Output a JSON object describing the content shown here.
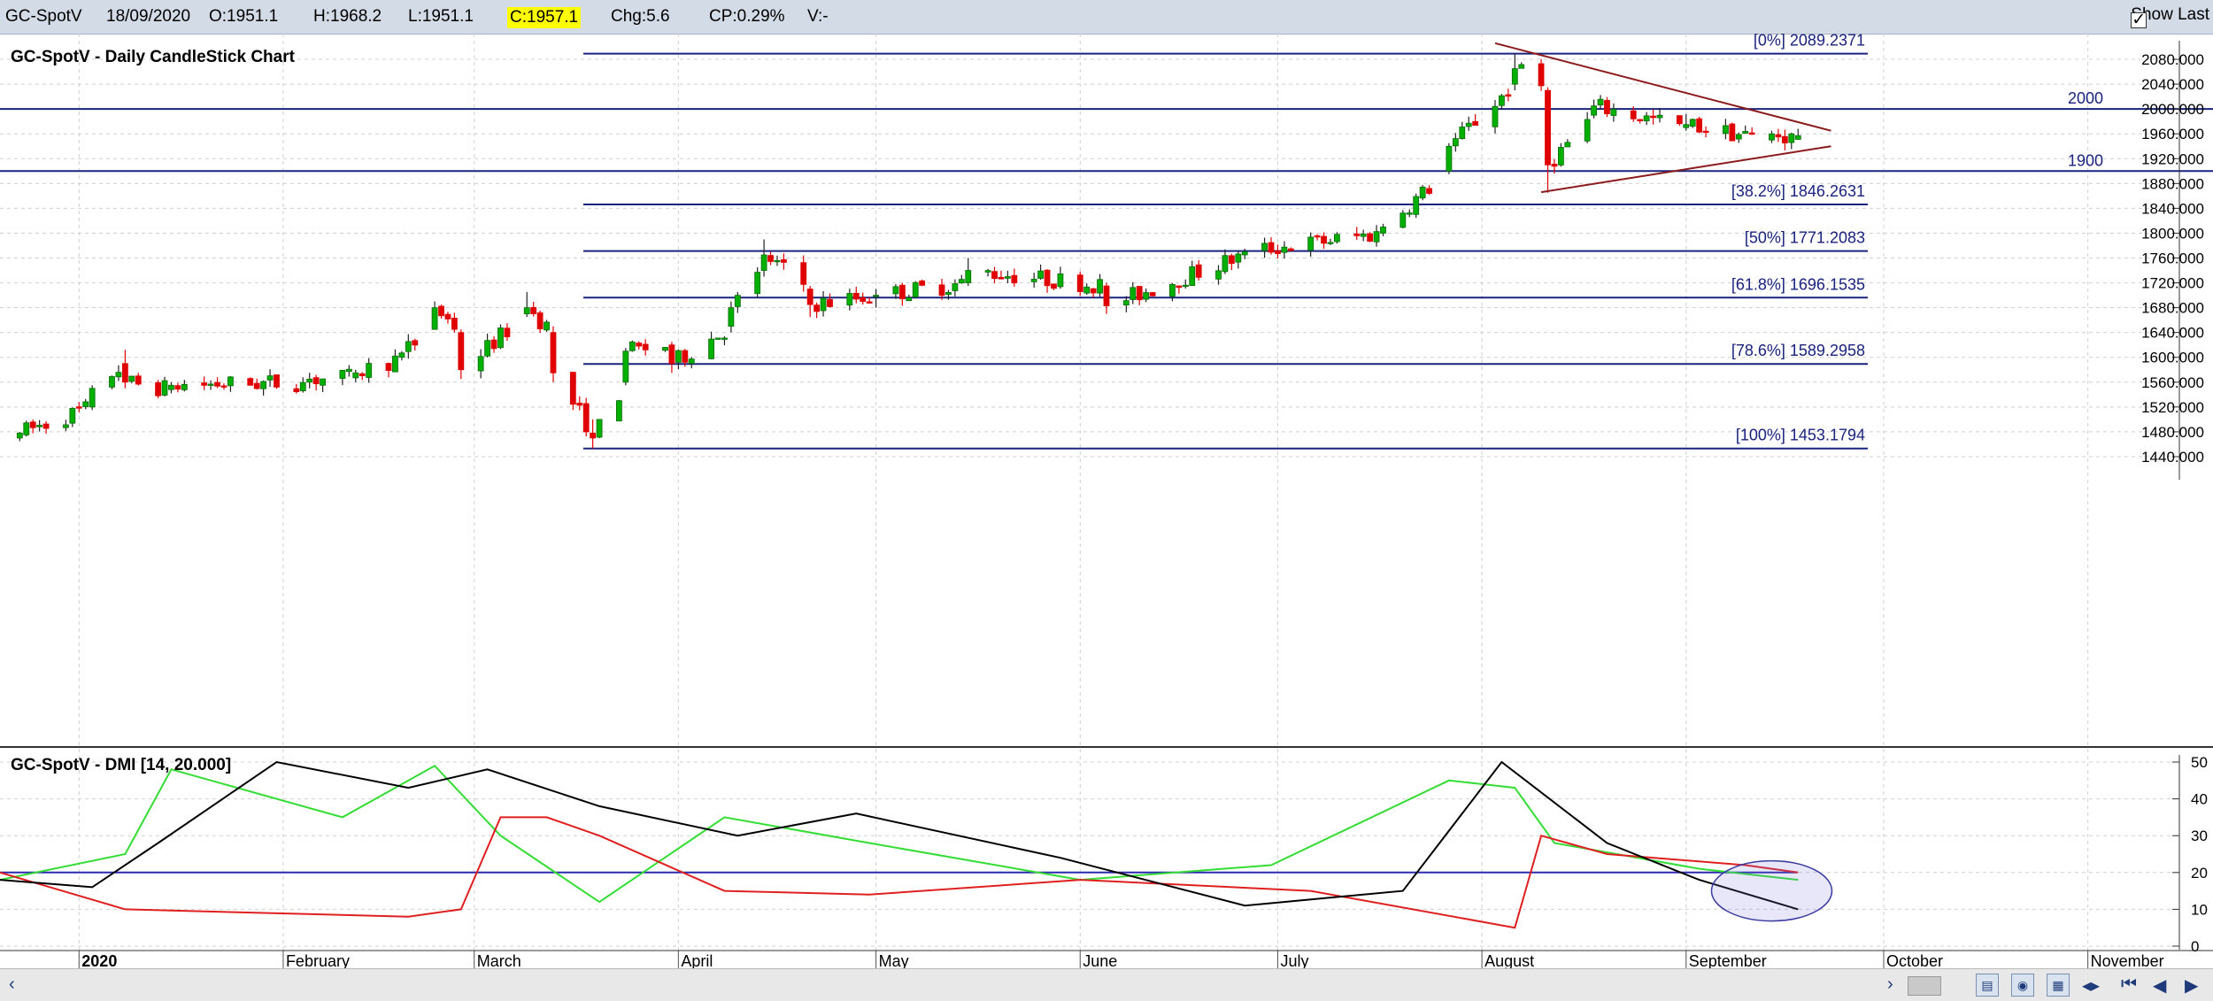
{
  "header": {
    "symbol": "GC-SpotV",
    "date": "18/09/2020",
    "open": "O:1951.1",
    "high": "H:1968.2",
    "low": "L:1951.1",
    "close": "C:1957.1",
    "change": "Chg:5.6",
    "change_pct": "CP:0.29%",
    "volume": "V:-",
    "show_last_label": "Show Last",
    "show_last_checked": true
  },
  "price_panel": {
    "title": "GC-SpotV - Daily CandleStick Chart",
    "y_ticks": [
      "2080.000",
      "2040.000",
      "2000.000",
      "1960.000",
      "1920.000",
      "1880.000",
      "1840.000",
      "1800.000",
      "1760.000",
      "1720.000",
      "1680.000",
      "1640.000",
      "1600.000",
      "1560.000",
      "1520.000",
      "1480.000",
      "1440.000"
    ],
    "horizontal_labels": [
      "2000",
      "1900"
    ],
    "fib_labels": [
      "[0%] 2089.2371",
      "[38.2%] 1846.2631",
      "[50%] 1771.2083",
      "[61.8%] 1696.1535",
      "[78.6%] 1589.2958",
      "[100%] 1453.1794"
    ]
  },
  "dmi_panel": {
    "title": "GC-SpotV - DMI [14, 20.000]",
    "y_ticks": [
      "50",
      "40",
      "30",
      "20",
      "10",
      "0"
    ]
  },
  "x_axis": {
    "labels": [
      "2020",
      "February",
      "March",
      "April",
      "May",
      "June",
      "July",
      "August",
      "September",
      "October",
      "November"
    ]
  },
  "colors": {
    "bull": "#00b000",
    "bear": "#e00000",
    "fib_line": "#1a237e",
    "triangle_line": "#8b1a1a",
    "dmi_plus": "#33dd33",
    "dmi_minus": "#e02020",
    "adx": "#000000",
    "threshold": "#2a2ab0",
    "grid": "#d0d0d0",
    "highlight": "#ffff00"
  },
  "chart_data": [
    {
      "type": "candlestick",
      "title": "GC-SpotV - Daily CandleStick Chart",
      "ylim": [
        1420,
        2110
      ],
      "x_range": [
        "2019-12-20",
        "2020-11-20"
      ],
      "ohlc_sample": [
        [
          "2019-12-23",
          1470,
          1480,
          1465,
          1478
        ],
        [
          "2020-01-03",
          1520,
          1555,
          1515,
          1550
        ],
        [
          "2020-01-08",
          1590,
          1612,
          1550,
          1560
        ],
        [
          "2020-01-15",
          1548,
          1560,
          1542,
          1555
        ],
        [
          "2020-02-05",
          1560,
          1575,
          1550,
          1565
        ],
        [
          "2020-02-12",
          1567,
          1580,
          1560,
          1575
        ],
        [
          "2020-02-19",
          1600,
          1610,
          1595,
          1607
        ],
        [
          "2020-02-24",
          1645,
          1690,
          1645,
          1680
        ],
        [
          "2020-02-28",
          1640,
          1645,
          1565,
          1580
        ],
        [
          "2020-03-09",
          1670,
          1705,
          1665,
          1680
        ],
        [
          "2020-03-13",
          1640,
          1650,
          1560,
          1575
        ],
        [
          "2020-03-19",
          1478,
          1500,
          1453,
          1470
        ],
        [
          "2020-03-24",
          1560,
          1615,
          1555,
          1610
        ],
        [
          "2020-03-31",
          1620,
          1625,
          1575,
          1590
        ],
        [
          "2020-04-09",
          1650,
          1690,
          1640,
          1680
        ],
        [
          "2020-04-14",
          1740,
          1790,
          1730,
          1765
        ],
        [
          "2020-04-21",
          1710,
          1715,
          1665,
          1685
        ],
        [
          "2020-05-01",
          1700,
          1710,
          1680,
          1700
        ],
        [
          "2020-05-15",
          1720,
          1760,
          1715,
          1740
        ],
        [
          "2020-06-05",
          1715,
          1720,
          1670,
          1683
        ],
        [
          "2020-06-26",
          1765,
          1775,
          1758,
          1770
        ],
        [
          "2020-07-17",
          1800,
          1815,
          1795,
          1810
        ],
        [
          "2020-07-27",
          1900,
          1945,
          1895,
          1940
        ],
        [
          "2020-08-06",
          2040,
          2089,
          2030,
          2065
        ],
        [
          "2020-08-11",
          2030,
          2035,
          1865,
          1910
        ],
        [
          "2020-08-18",
          1990,
          2015,
          1985,
          2005
        ],
        [
          "2020-09-01",
          1970,
          1992,
          1965,
          1975
        ],
        [
          "2020-09-14",
          1950,
          1965,
          1945,
          1960
        ],
        [
          "2020-09-18",
          1951.1,
          1968.2,
          1951.1,
          1957.1
        ]
      ],
      "fibonacci": [
        {
          "level": "0%",
          "value": 2089.2371
        },
        {
          "level": "38.2%",
          "value": 1846.2631
        },
        {
          "level": "50%",
          "value": 1771.2083
        },
        {
          "level": "61.8%",
          "value": 1696.1535
        },
        {
          "level": "78.6%",
          "value": 1589.2958
        },
        {
          "level": "100%",
          "value": 1453.1794
        }
      ],
      "horizontal_lines": [
        2000,
        1900
      ],
      "triangle": {
        "upper": [
          [
            "2020-08-03",
            2106
          ],
          [
            "2020-09-23",
            1965
          ]
        ],
        "lower": [
          [
            "2020-08-10",
            1866
          ],
          [
            "2020-09-23",
            1940
          ]
        ]
      }
    },
    {
      "type": "line",
      "title": "GC-SpotV - DMI [14, 20.000]",
      "ylim": [
        0,
        50
      ],
      "threshold": 20,
      "series": [
        {
          "name": "+DI",
          "x_dates": [
            "2019-12-20",
            "2020-01-08",
            "2020-01-15",
            "2020-02-10",
            "2020-02-24",
            "2020-03-05",
            "2020-03-20",
            "2020-04-08",
            "2020-04-30",
            "2020-06-01",
            "2020-06-30",
            "2020-07-27",
            "2020-08-06",
            "2020-08-12",
            "2020-09-03",
            "2020-09-18"
          ],
          "values": [
            18,
            25,
            48,
            35,
            49,
            30,
            12,
            35,
            28,
            18,
            22,
            45,
            43,
            28,
            21,
            18
          ]
        },
        {
          "name": "-DI",
          "x_dates": [
            "2019-12-20",
            "2020-01-08",
            "2020-02-20",
            "2020-02-28",
            "2020-03-05",
            "2020-03-12",
            "2020-03-20",
            "2020-04-08",
            "2020-04-30",
            "2020-06-01",
            "2020-07-06",
            "2020-08-06",
            "2020-08-10",
            "2020-08-20",
            "2020-09-10",
            "2020-09-18"
          ],
          "values": [
            20,
            10,
            8,
            10,
            35,
            35,
            30,
            15,
            14,
            18,
            15,
            5,
            30,
            25,
            22,
            20
          ]
        },
        {
          "name": "ADX",
          "x_dates": [
            "2019-12-20",
            "2020-01-03",
            "2020-01-13",
            "2020-01-31",
            "2020-02-20",
            "2020-03-03",
            "2020-03-20",
            "2020-04-10",
            "2020-04-28",
            "2020-05-29",
            "2020-06-26",
            "2020-07-20",
            "2020-08-04",
            "2020-08-20",
            "2020-09-03",
            "2020-09-18"
          ],
          "values": [
            18,
            16,
            28,
            50,
            43,
            48,
            38,
            30,
            36,
            24,
            11,
            15,
            50,
            28,
            18,
            10
          ]
        }
      ]
    }
  ]
}
